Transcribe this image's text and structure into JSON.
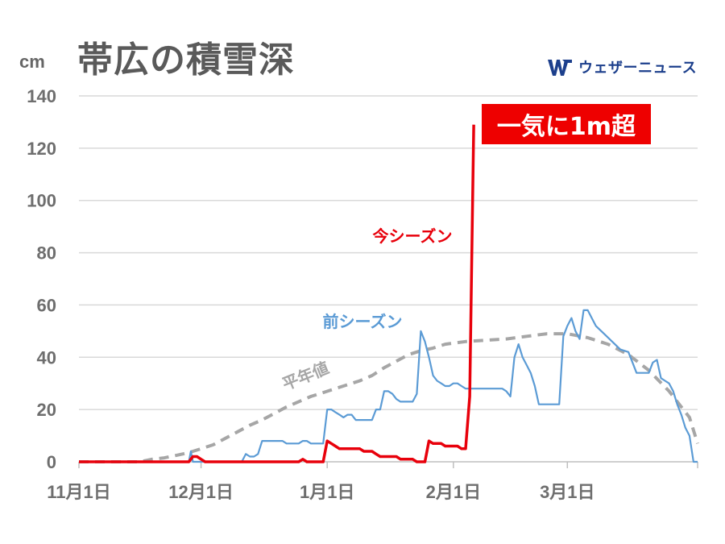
{
  "header": {
    "title": "帯広の積雪深",
    "brand": "ウェザーニュース",
    "callout": "一気に1m超"
  },
  "colors": {
    "current": "#e8000b",
    "previous": "#5b9bd5",
    "normal": "#a6a6a6",
    "grid": "#d9d9d9",
    "brand": "#1c3f8c",
    "callout_bg": "#ee0000"
  },
  "chart_data": {
    "type": "line",
    "title": "帯広の積雪深",
    "ylabel": "cm",
    "ylim": [
      0,
      140
    ],
    "yticks": [
      0,
      20,
      40,
      60,
      80,
      100,
      120,
      140
    ],
    "xlim": [
      0,
      150
    ],
    "xticks": [
      {
        "day": 0,
        "label": "11月1日"
      },
      {
        "day": 30,
        "label": "12月1日"
      },
      {
        "day": 61,
        "label": "1月1日"
      },
      {
        "day": 92,
        "label": "2月1日"
      },
      {
        "day": 120,
        "label": "3月1日"
      }
    ],
    "grid": true,
    "series": [
      {
        "name": "今シーズン",
        "color": "#e8000b",
        "style": "solid",
        "points": [
          [
            0,
            0
          ],
          [
            27,
            0
          ],
          [
            28,
            2
          ],
          [
            29,
            2
          ],
          [
            30,
            1
          ],
          [
            31,
            0
          ],
          [
            54,
            0
          ],
          [
            55,
            1
          ],
          [
            56,
            0
          ],
          [
            59,
            0
          ],
          [
            60,
            0
          ],
          [
            61,
            8
          ],
          [
            62,
            7
          ],
          [
            63,
            6
          ],
          [
            64,
            5
          ],
          [
            69,
            5
          ],
          [
            70,
            4
          ],
          [
            72,
            4
          ],
          [
            73,
            3
          ],
          [
            74,
            2
          ],
          [
            78,
            2
          ],
          [
            79,
            1
          ],
          [
            82,
            1
          ],
          [
            83,
            0
          ],
          [
            85,
            0
          ],
          [
            86,
            8
          ],
          [
            87,
            7
          ],
          [
            89,
            7
          ],
          [
            90,
            6
          ],
          [
            93,
            6
          ],
          [
            94,
            5
          ],
          [
            95,
            5
          ],
          [
            96,
            25
          ],
          [
            97,
            129
          ]
        ]
      },
      {
        "name": "前シーズン",
        "color": "#5b9bd5",
        "style": "solid",
        "points": [
          [
            0,
            0
          ],
          [
            27,
            0
          ],
          [
            27.5,
            4
          ],
          [
            28,
            0
          ],
          [
            40,
            0
          ],
          [
            41,
            3
          ],
          [
            42,
            2
          ],
          [
            43,
            2
          ],
          [
            44,
            3
          ],
          [
            45,
            8
          ],
          [
            50,
            8
          ],
          [
            51,
            7
          ],
          [
            54,
            7
          ],
          [
            55,
            8
          ],
          [
            56,
            8
          ],
          [
            57,
            7
          ],
          [
            60,
            7
          ],
          [
            61,
            20
          ],
          [
            62,
            20
          ],
          [
            63,
            19
          ],
          [
            64,
            18
          ],
          [
            65,
            17
          ],
          [
            66,
            18
          ],
          [
            67,
            18
          ],
          [
            68,
            16
          ],
          [
            72,
            16
          ],
          [
            73,
            20
          ],
          [
            74,
            20
          ],
          [
            75,
            27
          ],
          [
            76,
            27
          ],
          [
            77,
            26
          ],
          [
            78,
            24
          ],
          [
            79,
            23
          ],
          [
            82,
            23
          ],
          [
            83,
            26
          ],
          [
            84,
            50
          ],
          [
            85,
            46
          ],
          [
            86,
            40
          ],
          [
            87,
            33
          ],
          [
            88,
            31
          ],
          [
            89,
            30
          ],
          [
            90,
            29
          ],
          [
            91,
            29
          ],
          [
            92,
            30
          ],
          [
            93,
            30
          ],
          [
            94,
            29
          ],
          [
            95,
            28
          ],
          [
            96,
            28
          ],
          [
            97,
            28
          ],
          [
            103,
            28
          ],
          [
            104,
            28
          ],
          [
            105,
            27
          ],
          [
            106,
            25
          ],
          [
            107,
            40
          ],
          [
            108,
            45
          ],
          [
            109,
            40
          ],
          [
            110,
            37
          ],
          [
            111,
            34
          ],
          [
            112,
            29
          ],
          [
            113,
            22
          ],
          [
            115,
            22
          ],
          [
            118,
            22
          ],
          [
            119,
            48
          ],
          [
            120,
            52
          ],
          [
            121,
            55
          ],
          [
            122,
            50
          ],
          [
            123,
            47
          ],
          [
            124,
            58
          ],
          [
            125,
            58
          ],
          [
            126,
            55
          ],
          [
            127,
            52
          ],
          [
            129,
            49
          ],
          [
            131,
            46
          ],
          [
            133,
            43
          ],
          [
            135,
            42
          ],
          [
            136,
            38
          ],
          [
            137,
            34
          ],
          [
            140,
            34
          ],
          [
            141,
            38
          ],
          [
            142,
            39
          ],
          [
            143,
            32
          ],
          [
            144,
            31
          ],
          [
            145,
            30
          ],
          [
            146,
            27
          ],
          [
            147,
            22
          ],
          [
            148,
            18
          ],
          [
            149,
            13
          ],
          [
            150,
            10
          ],
          [
            151,
            0
          ],
          [
            152,
            0
          ]
        ]
      },
      {
        "name": "平年値",
        "color": "#a6a6a6",
        "style": "dashed",
        "points": [
          [
            0,
            0
          ],
          [
            15,
            0
          ],
          [
            18,
            1
          ],
          [
            21,
            1.5
          ],
          [
            24,
            2.5
          ],
          [
            27,
            3.5
          ],
          [
            30,
            5
          ],
          [
            33,
            6.5
          ],
          [
            36,
            9
          ],
          [
            39,
            11.5
          ],
          [
            42,
            14
          ],
          [
            45,
            16
          ],
          [
            48,
            18.5
          ],
          [
            51,
            21
          ],
          [
            54,
            23
          ],
          [
            57,
            25
          ],
          [
            60,
            26.5
          ],
          [
            63,
            28
          ],
          [
            66,
            29.5
          ],
          [
            69,
            31
          ],
          [
            72,
            33
          ],
          [
            75,
            36
          ],
          [
            78,
            38.5
          ],
          [
            81,
            41
          ],
          [
            84,
            42.5
          ],
          [
            87,
            43.5
          ],
          [
            90,
            45
          ],
          [
            95,
            46
          ],
          [
            100,
            46.5
          ],
          [
            105,
            47
          ],
          [
            110,
            48
          ],
          [
            115,
            49
          ],
          [
            120,
            49
          ],
          [
            125,
            47.5
          ],
          [
            130,
            45
          ],
          [
            135,
            41
          ],
          [
            140,
            35
          ],
          [
            145,
            27
          ],
          [
            150,
            17
          ],
          [
            152,
            7
          ]
        ]
      }
    ],
    "series_labels": [
      {
        "text": "今シーズン",
        "series": 0
      },
      {
        "text": "前シーズン",
        "series": 1
      },
      {
        "text": "平年値",
        "series": 2
      }
    ],
    "legend": "inline"
  }
}
